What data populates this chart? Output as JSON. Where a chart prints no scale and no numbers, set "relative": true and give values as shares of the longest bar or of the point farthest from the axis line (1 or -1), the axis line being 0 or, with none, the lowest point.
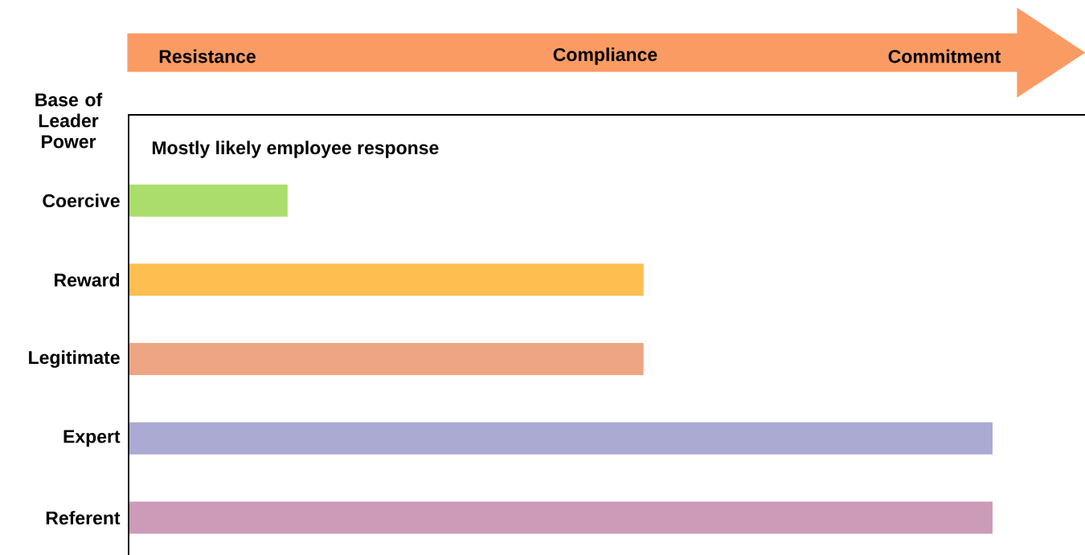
{
  "chart_data": {
    "type": "bar",
    "orientation": "horizontal",
    "relative": true,
    "ylabel": "Base of Leader Power",
    "subtitle": "Mostly likely employee response",
    "annotations": [
      "Resistance",
      "Compliance",
      "Commitment"
    ],
    "categories": [
      "Coercive",
      "Reward",
      "Legitimate",
      "Expert",
      "Referent"
    ],
    "values": [
      0.184,
      0.596,
      0.596,
      1,
      1
    ],
    "colors": [
      "#aadd6b",
      "#ffbe50",
      "#eda583",
      "#aaaad2",
      "#cc9bb7"
    ]
  }
}
